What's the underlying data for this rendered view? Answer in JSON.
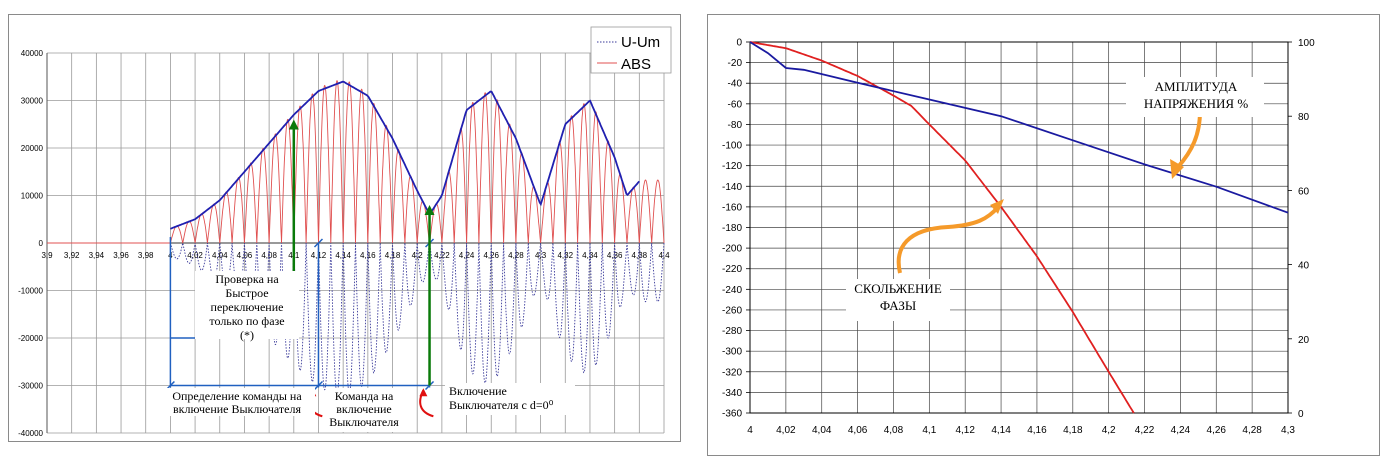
{
  "chart_data": [
    {
      "type": "line",
      "title": "",
      "xlabel": "",
      "ylabel": "",
      "xlim": [
        3.9,
        4.4
      ],
      "ylim": [
        -40000,
        40000
      ],
      "grid": true,
      "legend_position": "top-right",
      "x_ticks": [
        "3,9",
        "3,92",
        "3,94",
        "3,96",
        "3,98",
        "4",
        "4,02",
        "4,04",
        "4,06",
        "4,08",
        "4,1",
        "4,12",
        "4,14",
        "4,16",
        "4,18",
        "4,2",
        "4,22",
        "4,24",
        "4,26",
        "4,28",
        "4,3",
        "4,32",
        "4,34",
        "4,36",
        "4,38",
        "4,4"
      ],
      "y_ticks": [
        "40000",
        "30000",
        "20000",
        "10000",
        "0",
        "-10000",
        "-20000",
        "-30000",
        "-40000"
      ],
      "legend": [
        {
          "label": "U-Um",
          "color": "#3a3a9a",
          "style": "dotted"
        },
        {
          "label": "ABS",
          "color": "#e05050",
          "style": "solid"
        }
      ],
      "series": [
        {
          "name": "U-Um",
          "color": "#3a3a9a",
          "note_values": "oscillation between +envelope and -envelope, starts at x=4"
        },
        {
          "name": "ABS",
          "color": "#e05050"
        }
      ],
      "envelope": {
        "color": "#2020b0",
        "x": [
          4.0,
          4.02,
          4.04,
          4.06,
          4.08,
          4.1,
          4.12,
          4.14,
          4.16,
          4.18,
          4.2,
          4.21,
          4.22,
          4.24,
          4.26,
          4.28,
          4.3,
          4.32,
          4.34,
          4.36,
          4.37,
          4.38
        ],
        "y": [
          3000,
          5000,
          9000,
          15000,
          21000,
          27000,
          32000,
          34000,
          31000,
          22000,
          11000,
          6000,
          10000,
          28000,
          32000,
          22000,
          8000,
          25000,
          30000,
          18000,
          10000,
          13000
        ]
      },
      "arrows": [
        {
          "x": 4.1,
          "y_from": -20000,
          "y_to": 26000,
          "color": "#0a7a0a"
        },
        {
          "x": 4.21,
          "y_from": -30000,
          "y_to": 8000,
          "color": "#0a7a0a"
        }
      ],
      "annotations": [
        {
          "lines": [
            "Проверка на",
            "Быстрое",
            "переключение",
            "только по фазе",
            "(*)"
          ]
        },
        {
          "lines": [
            "Определение команды на",
            "включение Выключателя"
          ]
        },
        {
          "lines": [
            "Команда на",
            "включение",
            "Выключателя"
          ]
        },
        {
          "lines": [
            "Включение",
            "Выключателя с d=0⁰"
          ]
        }
      ]
    },
    {
      "type": "line",
      "title": "",
      "xlabel": "",
      "ylabel": "",
      "xlim": [
        4.0,
        4.3
      ],
      "ylim": [
        -360,
        0
      ],
      "y2lim": [
        0,
        100
      ],
      "grid": true,
      "x_ticks": [
        "4",
        "4,02",
        "4,04",
        "4,06",
        "4,08",
        "4,1",
        "4,12",
        "4,14",
        "4,16",
        "4,18",
        "4,2",
        "4,22",
        "4,24",
        "4,26",
        "4,28",
        "4,3"
      ],
      "y_ticks": [
        "0",
        "-20",
        "-40",
        "-60",
        "-80",
        "-100",
        "-120",
        "-140",
        "-160",
        "-180",
        "-200",
        "-220",
        "-240",
        "-260",
        "-280",
        "-300",
        "-320",
        "-340",
        "-360"
      ],
      "y2_ticks": [
        "100",
        "80",
        "60",
        "40",
        "20",
        "0"
      ],
      "series": [
        {
          "name": "",
          "axis": "left",
          "color": "#e02020",
          "x": [
            4.0,
            4.02,
            4.04,
            4.06,
            4.08,
            4.09,
            4.1,
            4.12,
            4.14,
            4.16,
            4.18,
            4.2,
            4.214
          ],
          "y": [
            0,
            -6,
            -18,
            -33,
            -52,
            -62,
            -80,
            -115,
            -160,
            -208,
            -262,
            -320,
            -360
          ]
        },
        {
          "name": "",
          "axis": "right",
          "color": "#1a1aa0",
          "x": [
            4.0,
            4.01,
            4.02,
            4.03,
            4.06,
            4.1,
            4.14,
            4.18,
            4.22,
            4.26,
            4.3
          ],
          "y": [
            100,
            97,
            93,
            92.5,
            89,
            84.5,
            80,
            73.5,
            67,
            61,
            54
          ]
        }
      ],
      "annotations": [
        {
          "lines": [
            "АМПЛИТУДА",
            "НАПРЯЖЕНИЯ %"
          ]
        },
        {
          "lines": [
            "СКОЛЬЖЕНИЕ",
            "ФАЗЫ"
          ]
        }
      ]
    }
  ]
}
